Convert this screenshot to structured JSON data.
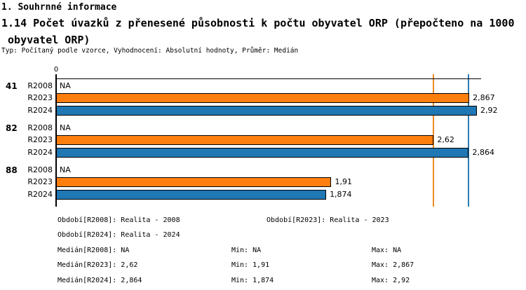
{
  "header": {
    "title": "1. Souhrnné informace",
    "subtitle_line1": "1.14 Počet úvazků z přenesené působnosti k počtu obyvatel ORP (přepočteno na 1000",
    "subtitle_line2": " obyvatel ORP)",
    "meta": "Typ: Počítaný podle vzorce, Vyhodnocení: Absolutní hodnoty, Průměr: Medián"
  },
  "chart_data": {
    "type": "bar",
    "orientation": "horizontal",
    "value_axis": {
      "zero_label": "0",
      "xlim": [
        0,
        2.95
      ]
    },
    "series": [
      {
        "name": "R2023",
        "color": "#ff7f0e"
      },
      {
        "name": "R2024",
        "color": "#1f77b4"
      }
    ],
    "groups": [
      {
        "category": "41",
        "rows": [
          {
            "period": "R2008",
            "value": null,
            "label": "NA",
            "color": null
          },
          {
            "period": "R2023",
            "value": 2.867,
            "label": "2,867",
            "color": "#ff7f0e"
          },
          {
            "period": "R2024",
            "value": 2.92,
            "label": "2,92",
            "color": "#1f77b4"
          }
        ]
      },
      {
        "category": "82",
        "rows": [
          {
            "period": "R2008",
            "value": null,
            "label": "NA",
            "color": null
          },
          {
            "period": "R2023",
            "value": 2.62,
            "label": "2,62",
            "color": "#ff7f0e"
          },
          {
            "period": "R2024",
            "value": 2.864,
            "label": "2,864",
            "color": "#1f77b4"
          }
        ]
      },
      {
        "category": "88",
        "rows": [
          {
            "period": "R2008",
            "value": null,
            "label": "NA",
            "color": null
          },
          {
            "period": "R2023",
            "value": 1.91,
            "label": "1,91",
            "color": "#ff7f0e"
          },
          {
            "period": "R2024",
            "value": 1.874,
            "label": "1,874",
            "color": "#1f77b4"
          }
        ]
      }
    ],
    "reference_lines": [
      {
        "name": "median-r2023",
        "value": 2.62,
        "color": "#ee8a22"
      },
      {
        "name": "median-r2024",
        "value": 2.864,
        "color": "#2b7cb5"
      }
    ]
  },
  "legend": {
    "periods_row1": [
      "Období[R2008]: Realita - 2008",
      "Období[R2023]: Realita - 2023"
    ],
    "periods_row2": [
      "Období[R2024]: Realita - 2024"
    ],
    "stats": [
      {
        "median": "Medián[R2008]: NA",
        "min": "Min: NA",
        "max": "Max: NA"
      },
      {
        "median": "Medián[R2023]: 2,62",
        "min": "Min: 1,91",
        "max": "Max: 2,867"
      },
      {
        "median": "Medián[R2024]: 2,864",
        "min": "Min: 1,874",
        "max": "Max: 2,92"
      }
    ]
  }
}
